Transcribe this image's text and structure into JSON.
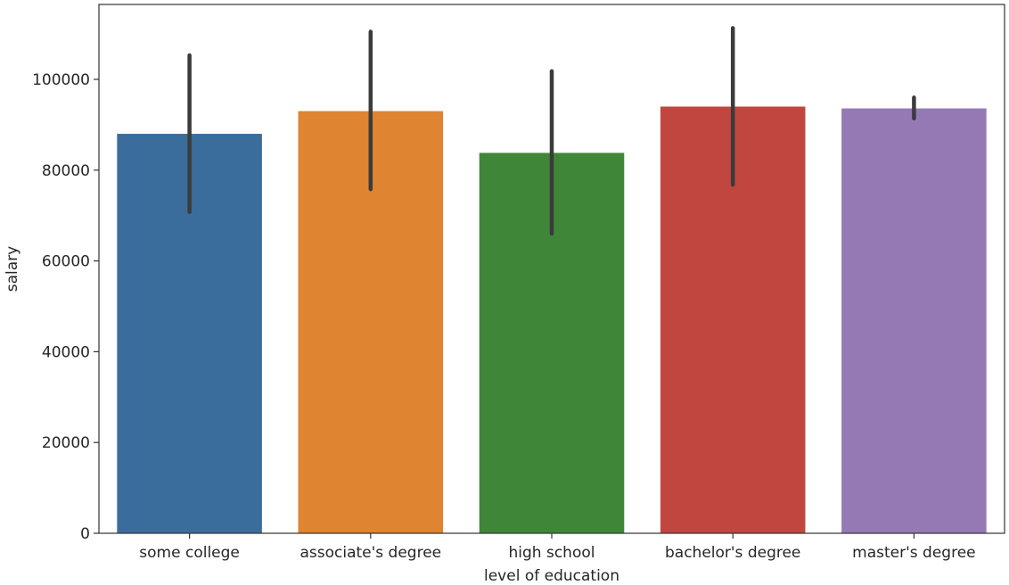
{
  "chart_data": {
    "type": "bar",
    "title": "",
    "xlabel": "level of education",
    "ylabel": "salary",
    "categories": [
      "some college",
      "associate's degree",
      "high school",
      "bachelor's degree",
      "master's degree"
    ],
    "values": [
      88000,
      93000,
      83800,
      94000,
      93600
    ],
    "error_low": [
      70800,
      75800,
      66000,
      76800,
      91400
    ],
    "error_high": [
      105300,
      110500,
      101800,
      111300,
      96000
    ],
    "colors": [
      "#3a6d9c",
      "#df8431",
      "#3f8639",
      "#c1463f",
      "#9579b5"
    ],
    "ylim": [
      0,
      116500
    ],
    "yticks": [
      0,
      20000,
      40000,
      60000,
      80000,
      100000
    ],
    "ytick_labels": [
      "0",
      "20000",
      "40000",
      "60000",
      "80000",
      "100000"
    ],
    "grid": false,
    "legend": "none"
  }
}
